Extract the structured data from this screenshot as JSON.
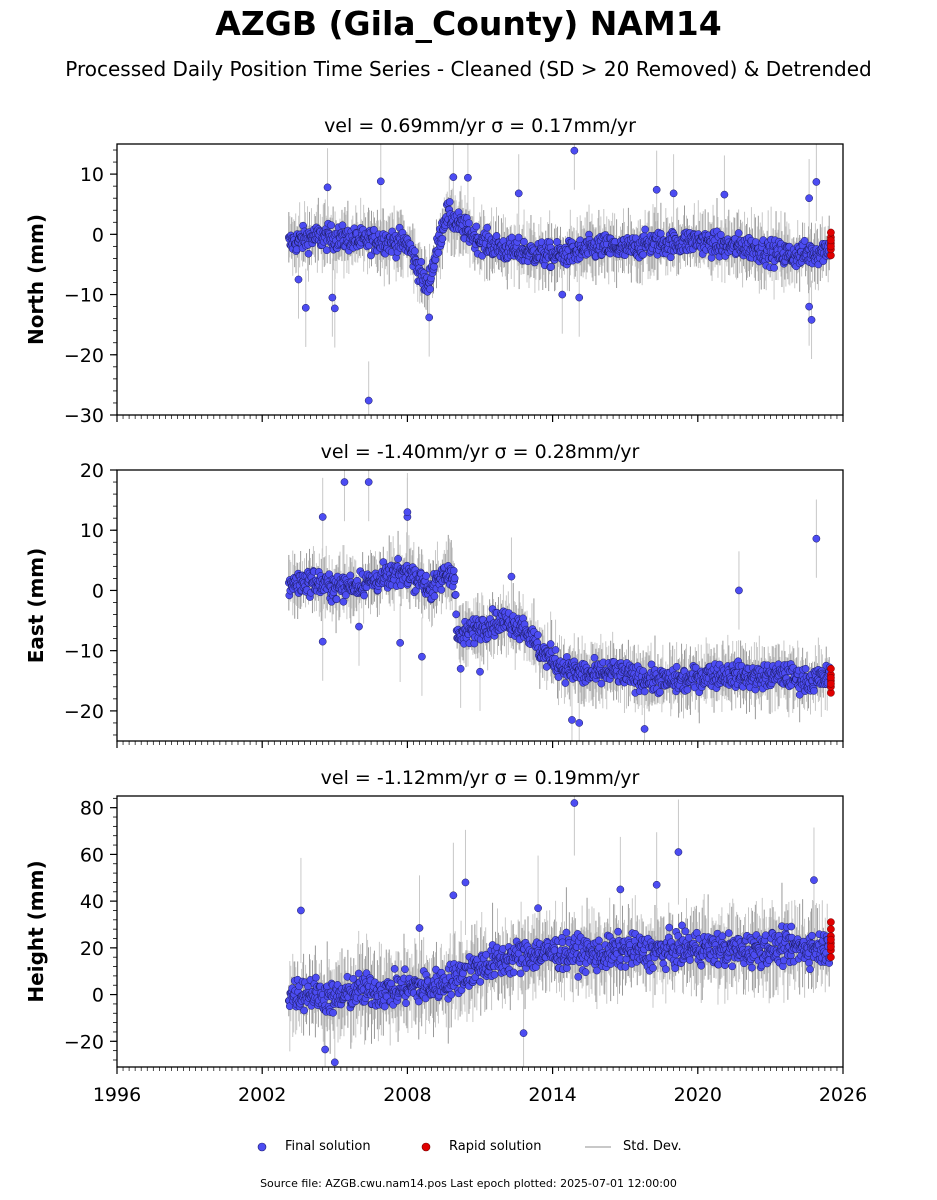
{
  "title": "AZGB (Gila_County) NAM14",
  "subtitle": "Processed Daily Position Time Series - Cleaned (SD > 20 Removed) & Detrended",
  "chart_data": [
    {
      "type": "scatter",
      "panel_title": "vel = 0.69mm/yr   σ = 0.17mm/yr",
      "ylabel": "North (mm)",
      "xlim": [
        1996,
        2026
      ],
      "ylim": [
        -30,
        15
      ],
      "yticks": [
        10,
        0,
        -10,
        -20,
        -30
      ],
      "trend_points": [
        [
          2003.1,
          -1.5
        ],
        [
          2004.0,
          -0.5
        ],
        [
          2005.0,
          -0.5
        ],
        [
          2006.0,
          -1.0
        ],
        [
          2007.0,
          -1.0
        ],
        [
          2008.0,
          -1.5
        ],
        [
          2008.4,
          -5.0
        ],
        [
          2008.8,
          -9.0
        ],
        [
          2009.2,
          -3.0
        ],
        [
          2009.6,
          3.5
        ],
        [
          2010.0,
          2.0
        ],
        [
          2011.0,
          -1.0
        ],
        [
          2012.0,
          -2.5
        ],
        [
          2013.0,
          -3.0
        ],
        [
          2014.0,
          -3.5
        ],
        [
          2015.0,
          -3.0
        ],
        [
          2016.0,
          -2.0
        ],
        [
          2017.0,
          -2.5
        ],
        [
          2018.0,
          -1.5
        ],
        [
          2019.0,
          -1.5
        ],
        [
          2020.0,
          -1.0
        ],
        [
          2021.0,
          -2.0
        ],
        [
          2022.0,
          -2.0
        ],
        [
          2023.0,
          -3.0
        ],
        [
          2024.0,
          -3.5
        ],
        [
          2025.0,
          -3.0
        ],
        [
          2025.45,
          -2.0
        ]
      ],
      "spread": 2.6,
      "outliers": [
        [
          2003.5,
          -7.5
        ],
        [
          2003.8,
          -12.2
        ],
        [
          2004.9,
          -10.5
        ],
        [
          2005.0,
          -12.3
        ],
        [
          2004.7,
          7.8
        ],
        [
          2006.4,
          -27.6
        ],
        [
          2006.9,
          8.8
        ],
        [
          2008.9,
          -13.8
        ],
        [
          2009.9,
          9.5
        ],
        [
          2010.5,
          9.4
        ],
        [
          2012.6,
          6.8
        ],
        [
          2014.4,
          -10.0
        ],
        [
          2014.9,
          13.9
        ],
        [
          2015.1,
          -10.5
        ],
        [
          2018.3,
          7.4
        ],
        [
          2019.0,
          6.8
        ],
        [
          2021.1,
          6.6
        ],
        [
          2024.6,
          -12.0
        ],
        [
          2024.7,
          -14.2
        ],
        [
          2024.9,
          8.7
        ],
        [
          2024.6,
          6.0
        ]
      ],
      "rapid": [
        [
          2025.5,
          -3.5
        ],
        [
          2025.5,
          -2.5
        ],
        [
          2025.5,
          -1.5
        ],
        [
          2025.5,
          -0.5
        ],
        [
          2025.5,
          0.3
        ],
        [
          2025.5,
          -2.0
        ],
        [
          2025.5,
          -1.0
        ]
      ]
    },
    {
      "type": "scatter",
      "panel_title": "vel = -1.40mm/yr   σ = 0.28mm/yr",
      "ylabel": "East (mm)",
      "xlim": [
        1996,
        2026
      ],
      "ylim": [
        -25,
        20
      ],
      "yticks": [
        20,
        10,
        0,
        -10,
        -20
      ],
      "trend_points": [
        [
          2003.1,
          1.0
        ],
        [
          2004.0,
          1.5
        ],
        [
          2005.0,
          0.5
        ],
        [
          2006.0,
          1.0
        ],
        [
          2007.0,
          2.0
        ],
        [
          2008.0,
          3.0
        ],
        [
          2008.5,
          2.0
        ],
        [
          2009.0,
          0.0
        ],
        [
          2009.5,
          2.5
        ],
        [
          2009.95,
          3.0
        ],
        [
          2010.05,
          -8.0
        ],
        [
          2011.0,
          -6.0
        ],
        [
          2012.0,
          -5.0
        ],
        [
          2012.8,
          -6.0
        ],
        [
          2013.5,
          -10.0
        ],
        [
          2014.5,
          -13.0
        ],
        [
          2015.5,
          -14.0
        ],
        [
          2016.5,
          -13.5
        ],
        [
          2017.5,
          -14.5
        ],
        [
          2018.5,
          -15.0
        ],
        [
          2019.5,
          -15.0
        ],
        [
          2020.5,
          -14.0
        ],
        [
          2021.5,
          -14.0
        ],
        [
          2022.5,
          -14.5
        ],
        [
          2023.5,
          -14.0
        ],
        [
          2024.5,
          -15.0
        ],
        [
          2025.45,
          -14.5
        ]
      ],
      "spread": 2.6,
      "outliers": [
        [
          2004.5,
          12.2
        ],
        [
          2005.4,
          18.0
        ],
        [
          2006.0,
          -6.0
        ],
        [
          2006.4,
          18.0
        ],
        [
          2007.7,
          -8.7
        ],
        [
          2008.0,
          12.2
        ],
        [
          2008.0,
          13.0
        ],
        [
          2008.6,
          -11.0
        ],
        [
          2010.2,
          -13.0
        ],
        [
          2011.0,
          -13.5
        ],
        [
          2012.3,
          2.3
        ],
        [
          2014.8,
          -21.5
        ],
        [
          2015.1,
          -22.0
        ],
        [
          2017.8,
          -23.0
        ],
        [
          2021.7,
          0.0
        ],
        [
          2024.9,
          8.6
        ],
        [
          2004.5,
          -8.5
        ]
      ],
      "rapid": [
        [
          2025.5,
          -17.0
        ],
        [
          2025.5,
          -16.0
        ],
        [
          2025.5,
          -15.0
        ],
        [
          2025.5,
          -14.0
        ],
        [
          2025.5,
          -13.0
        ],
        [
          2025.5,
          -14.5
        ],
        [
          2025.5,
          -15.5
        ]
      ]
    },
    {
      "type": "scatter",
      "panel_title": "vel = -1.12mm/yr   σ = 0.19mm/yr",
      "ylabel": "Height (mm)",
      "xlim": [
        1996,
        2026
      ],
      "ylim": [
        -31,
        85
      ],
      "yticks": [
        80,
        60,
        40,
        20,
        0,
        -20
      ],
      "xticks": [
        "1996",
        "2002",
        "2008",
        "2014",
        "2020",
        "2026"
      ],
      "trend_points": [
        [
          2003.1,
          0.0
        ],
        [
          2004.0,
          1.0
        ],
        [
          2005.0,
          -2.0
        ],
        [
          2006.0,
          2.0
        ],
        [
          2007.0,
          1.0
        ],
        [
          2008.0,
          3.0
        ],
        [
          2009.0,
          3.0
        ],
        [
          2010.0,
          7.0
        ],
        [
          2011.0,
          12.0
        ],
        [
          2012.0,
          15.0
        ],
        [
          2013.0,
          17.0
        ],
        [
          2014.0,
          18.0
        ],
        [
          2015.0,
          18.0
        ],
        [
          2016.0,
          17.0
        ],
        [
          2017.0,
          19.0
        ],
        [
          2018.0,
          18.0
        ],
        [
          2019.0,
          19.0
        ],
        [
          2020.0,
          20.0
        ],
        [
          2021.0,
          19.0
        ],
        [
          2022.0,
          19.0
        ],
        [
          2023.0,
          20.0
        ],
        [
          2024.0,
          20.0
        ],
        [
          2025.45,
          20.0
        ]
      ],
      "spread": 9.0,
      "outliers": [
        [
          2003.6,
          36.0
        ],
        [
          2004.6,
          -23.5
        ],
        [
          2005.0,
          -29.0
        ],
        [
          2008.5,
          28.5
        ],
        [
          2009.9,
          42.5
        ],
        [
          2010.4,
          48.0
        ],
        [
          2012.8,
          -16.5
        ],
        [
          2014.9,
          82.0
        ],
        [
          2016.8,
          45.0
        ],
        [
          2018.3,
          47.0
        ],
        [
          2019.2,
          61.0
        ],
        [
          2024.8,
          49.0
        ],
        [
          2013.4,
          37.0
        ]
      ],
      "rapid": [
        [
          2025.5,
          16.0
        ],
        [
          2025.5,
          19.0
        ],
        [
          2025.5,
          22.0
        ],
        [
          2025.5,
          25.0
        ],
        [
          2025.5,
          28.0
        ],
        [
          2025.5,
          31.0
        ],
        [
          2025.5,
          20.5
        ],
        [
          2025.5,
          23.5
        ]
      ]
    }
  ],
  "legend": {
    "final": "Final solution",
    "rapid": "Rapid solution",
    "std": "Std. Dev."
  },
  "colors": {
    "final": "#4c4cf2",
    "rapid": "#e00000",
    "std": "#c8c8c8"
  },
  "footer": "Source file: AZGB.cwu.nam14.pos  Last epoch plotted: 2025-07-01 12:00:00"
}
